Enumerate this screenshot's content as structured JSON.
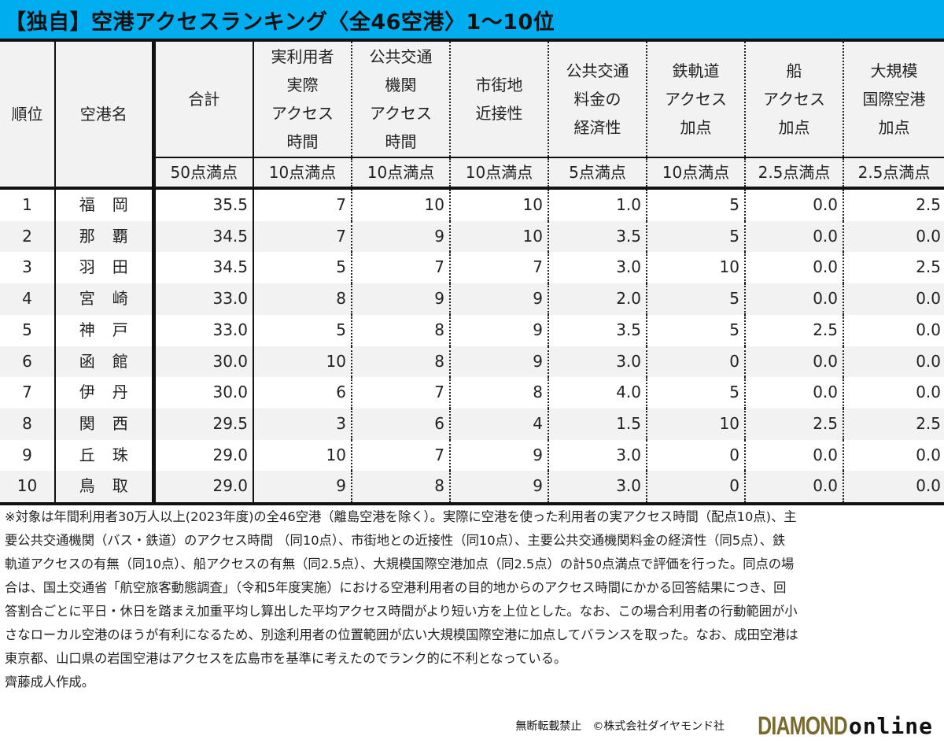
{
  "title": "【独自】空港アクセスランキング〈全46空港〉1〜10位",
  "table": {
    "headers": [
      {
        "key": "rank",
        "label": "順位",
        "max": ""
      },
      {
        "key": "name",
        "label": "空港名",
        "max": ""
      },
      {
        "key": "total",
        "label": "合計",
        "max": "50点満点"
      },
      {
        "key": "actual_access",
        "label": "実利用者\n実際\nアクセス\n時間",
        "max": "10点満点"
      },
      {
        "key": "public_access",
        "label": "公共交通\n機関\nアクセス\n時間",
        "max": "10点満点"
      },
      {
        "key": "proximity",
        "label": "市街地\n近接性",
        "max": "10点満点"
      },
      {
        "key": "fare_economy",
        "label": "公共交通\n料金の\n経済性",
        "max": "5点満点"
      },
      {
        "key": "rail_bonus",
        "label": "鉄軌道\nアクセス\n加点",
        "max": "10点満点"
      },
      {
        "key": "ship_bonus",
        "label": "船\nアクセス\n加点",
        "max": "2.5点満点"
      },
      {
        "key": "intl_bonus",
        "label": "大規模\n国際空港\n加点",
        "max": "2.5点満点"
      }
    ],
    "rows": [
      [
        "1",
        "福岡",
        "35.5",
        "7",
        "10",
        "10",
        "1.0",
        "5",
        "0.0",
        "2.5"
      ],
      [
        "2",
        "那覇",
        "34.5",
        "7",
        "9",
        "10",
        "3.5",
        "5",
        "0.0",
        "0.0"
      ],
      [
        "3",
        "羽田",
        "34.5",
        "5",
        "7",
        "7",
        "3.0",
        "10",
        "0.0",
        "2.5"
      ],
      [
        "4",
        "宮崎",
        "33.0",
        "8",
        "9",
        "9",
        "2.0",
        "5",
        "0.0",
        "0.0"
      ],
      [
        "5",
        "神戸",
        "33.0",
        "5",
        "8",
        "9",
        "3.5",
        "5",
        "2.5",
        "0.0"
      ],
      [
        "6",
        "函館",
        "30.0",
        "10",
        "8",
        "9",
        "3.0",
        "0",
        "0.0",
        "0.0"
      ],
      [
        "7",
        "伊丹",
        "30.0",
        "6",
        "7",
        "8",
        "4.0",
        "5",
        "0.0",
        "0.0"
      ],
      [
        "8",
        "関西",
        "29.5",
        "3",
        "6",
        "4",
        "1.5",
        "10",
        "2.5",
        "2.5"
      ],
      [
        "9",
        "丘珠",
        "29.0",
        "10",
        "7",
        "9",
        "3.0",
        "0",
        "0.0",
        "0.0"
      ],
      [
        "10",
        "鳥取",
        "29.0",
        "9",
        "8",
        "9",
        "3.0",
        "0",
        "0.0",
        "0.0"
      ]
    ]
  },
  "note": {
    "lines": [
      "※対象は年間利用者30万人以上(2023年度)の全46空港（離島空港を除く）。実際に空港を使った利用者の実アクセス時間（配点10点)、主",
      "要公共交通機関（バス・鉄道）のアクセス時間 （同10点）、市街地との近接性（同10点）、主要公共交通機関料金の経済性（同5点）、鉄",
      "軌道アクセスの有無（同10点）、船アクセスの有無（同2.5点）、大規模国際空港加点（同2.5点）の計50点満点で評価を行った。同点の場",
      "合は、国土交通省「航空旅客動態調査」（令和5年度実施）における空港利用者の目的地からのアクセス時間にかかる回答結果につき、回",
      "答割合ごとに平日・休日を踏まえ加重平均し算出した平均アクセス時間がより短い方を上位とした。なお、この場合利用者の行動範囲が小",
      "さなローカル空港のほうが有利になるため、別途利用者の位置範囲が広い大規模国際空港に加点してバランスを取った。なお、成田空港は",
      "東京都、山口県の岩国空港はアクセスを広島市を基準に考えたのでランク的に不利となっている。",
      "齊藤成人作成。"
    ]
  },
  "footer": {
    "copyright": "無断転載禁止　©株式会社ダイヤモンド社",
    "logo_main": "DIAMOND",
    "logo_sub": "online",
    "logo_color": "#7a6a2e"
  },
  "colors": {
    "title_bg": "#00aeef",
    "row_alt": "#f2f2f2"
  }
}
